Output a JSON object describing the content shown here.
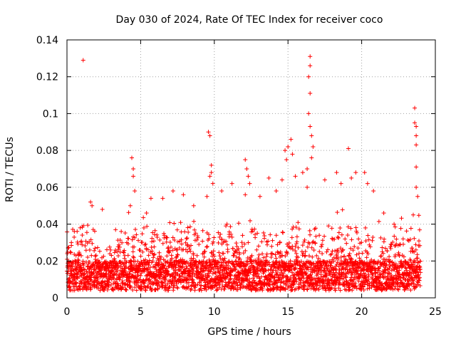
{
  "chart_data": {
    "type": "scatter",
    "title": "Day 030 of 2024, Rate Of TEC Index for receiver coco",
    "xlabel": "GPS time / hours",
    "ylabel": "ROTI / TECUs",
    "xlim": [
      0,
      25
    ],
    "ylim": [
      0,
      0.14
    ],
    "xticks": [
      0,
      5,
      10,
      15,
      20,
      25
    ],
    "xtick_labels": [
      "0",
      "5",
      "10",
      "15",
      "20",
      "25"
    ],
    "yticks": [
      0,
      0.02,
      0.04,
      0.06,
      0.08,
      0.1,
      0.12,
      0.14
    ],
    "ytick_labels": [
      "0",
      "0.02",
      "0.04",
      "0.06",
      "0.08",
      "0.1",
      "0.12",
      "0.14"
    ],
    "grid": true,
    "marker": "+",
    "color": "#ff0000",
    "data_range": [
      0,
      24
    ],
    "series": [
      {
        "name": "ROTI",
        "points": [
          [
            1.1,
            0.129
          ],
          [
            0.3,
            0.03
          ],
          [
            0.5,
            0.036
          ],
          [
            0.9,
            0.038
          ],
          [
            1.6,
            0.052
          ],
          [
            1.7,
            0.05
          ],
          [
            2.4,
            0.048
          ],
          [
            3.3,
            0.037
          ],
          [
            4.4,
            0.076
          ],
          [
            4.5,
            0.07
          ],
          [
            4.5,
            0.066
          ],
          [
            4.3,
            0.05
          ],
          [
            4.6,
            0.058
          ],
          [
            5.4,
            0.046
          ],
          [
            5.7,
            0.054
          ],
          [
            6.5,
            0.054
          ],
          [
            7.2,
            0.058
          ],
          [
            7.9,
            0.056
          ],
          [
            8.6,
            0.05
          ],
          [
            9.6,
            0.09
          ],
          [
            9.7,
            0.088
          ],
          [
            9.8,
            0.072
          ],
          [
            9.8,
            0.068
          ],
          [
            9.7,
            0.066
          ],
          [
            9.9,
            0.062
          ],
          [
            9.5,
            0.055
          ],
          [
            10.5,
            0.058
          ],
          [
            11.2,
            0.062
          ],
          [
            12.1,
            0.075
          ],
          [
            12.2,
            0.07
          ],
          [
            12.3,
            0.066
          ],
          [
            12.4,
            0.062
          ],
          [
            12.1,
            0.056
          ],
          [
            13.1,
            0.055
          ],
          [
            13.7,
            0.065
          ],
          [
            14.2,
            0.058
          ],
          [
            14.6,
            0.064
          ],
          [
            14.8,
            0.08
          ],
          [
            14.9,
            0.075
          ],
          [
            15.0,
            0.082
          ],
          [
            15.2,
            0.086
          ],
          [
            15.3,
            0.078
          ],
          [
            15.5,
            0.066
          ],
          [
            16.0,
            0.068
          ],
          [
            16.3,
            0.06
          ],
          [
            16.5,
            0.131
          ],
          [
            16.5,
            0.126
          ],
          [
            16.4,
            0.12
          ],
          [
            16.5,
            0.111
          ],
          [
            16.4,
            0.1
          ],
          [
            16.5,
            0.093
          ],
          [
            16.6,
            0.088
          ],
          [
            16.7,
            0.082
          ],
          [
            16.6,
            0.076
          ],
          [
            16.3,
            0.07
          ],
          [
            17.5,
            0.064
          ],
          [
            18.3,
            0.068
          ],
          [
            18.6,
            0.062
          ],
          [
            19.1,
            0.081
          ],
          [
            19.3,
            0.065
          ],
          [
            19.6,
            0.068
          ],
          [
            20.2,
            0.068
          ],
          [
            20.4,
            0.062
          ],
          [
            20.8,
            0.058
          ],
          [
            21.5,
            0.046
          ],
          [
            22.2,
            0.04
          ],
          [
            23.6,
            0.103
          ],
          [
            23.6,
            0.095
          ],
          [
            23.7,
            0.093
          ],
          [
            23.7,
            0.088
          ],
          [
            23.7,
            0.083
          ],
          [
            23.7,
            0.071
          ],
          [
            23.7,
            0.06
          ],
          [
            23.8,
            0.055
          ],
          [
            23.5,
            0.045
          ]
        ]
      }
    ]
  }
}
